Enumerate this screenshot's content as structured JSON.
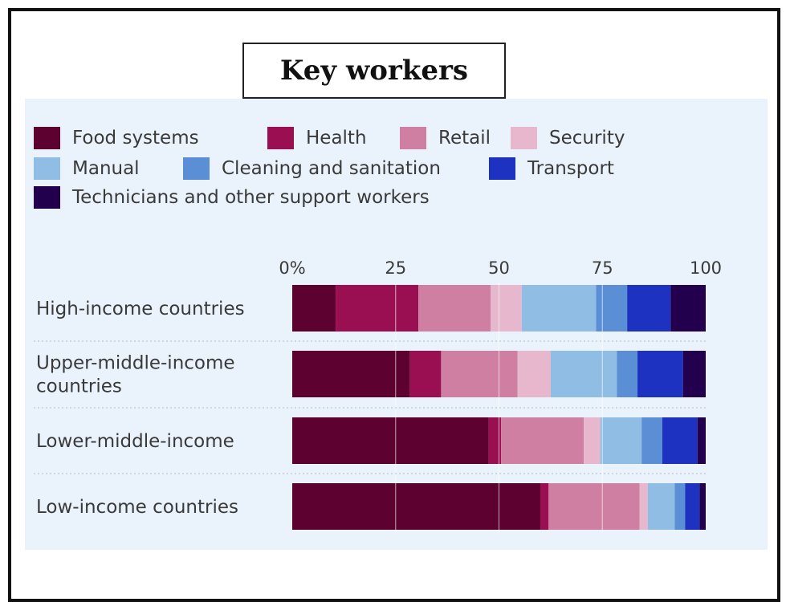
{
  "chart_data": {
    "type": "bar",
    "orientation": "horizontal",
    "stacked": true,
    "title": "Key workers",
    "xlim": [
      0,
      100
    ],
    "ticks": [
      0,
      25,
      50,
      75,
      100
    ],
    "tick_labels": [
      "0%",
      "25",
      "50",
      "75",
      "100"
    ],
    "grid": true,
    "legend": "top",
    "categories": [
      [
        "High-income countries"
      ],
      [
        "Upper-middle-income",
        "countries"
      ],
      [
        "Lower-middle-income"
      ],
      [
        "Low-income countries"
      ]
    ],
    "series": [
      {
        "name": "Food systems",
        "color": "#5c0130",
        "values": [
          10.5,
          28.5,
          47.5,
          60.0
        ]
      },
      {
        "name": "Health",
        "color": "#9a0e52",
        "values": [
          20.0,
          7.5,
          3.0,
          2.0
        ]
      },
      {
        "name": "Retail",
        "color": "#cf80a2",
        "values": [
          17.5,
          18.5,
          20.0,
          22.0
        ]
      },
      {
        "name": "Security",
        "color": "#e7b8cd",
        "values": [
          7.5,
          8.0,
          4.0,
          2.0
        ]
      },
      {
        "name": "Manual",
        "color": "#8fbde3",
        "values": [
          18.0,
          16.0,
          10.0,
          6.5
        ]
      },
      {
        "name": "Cleaning and sanitation",
        "color": "#5a8fd6",
        "values": [
          7.5,
          5.0,
          5.0,
          2.5
        ]
      },
      {
        "name": "Transport",
        "color": "#1e32c2",
        "values": [
          10.5,
          11.0,
          8.5,
          3.5
        ]
      },
      {
        "name": "Technicians and other support workers",
        "color": "#23004d",
        "values": [
          8.5,
          5.5,
          2.0,
          1.5
        ]
      }
    ]
  }
}
